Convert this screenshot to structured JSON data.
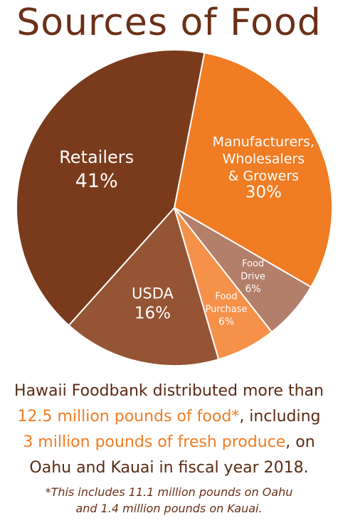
{
  "title": "Sources of Food",
  "chart_data": {
    "type": "pie",
    "title": "Sources of Food",
    "slices": [
      {
        "label_lines": [
          "Manufacturers,",
          "Wholesalers",
          "& Growers"
        ],
        "value": 30,
        "value_label": "30%",
        "color": "#f07c23"
      },
      {
        "label_lines": [
          "Food",
          "Drive"
        ],
        "value": 6,
        "value_label": "6%",
        "color": "#b37e6a"
      },
      {
        "label_lines": [
          "Food",
          "Purchase"
        ],
        "value": 6,
        "value_label": "6%",
        "color": "#f6914a"
      },
      {
        "label_lines": [
          "USDA"
        ],
        "value": 16,
        "value_label": "16%",
        "color": "#955433"
      },
      {
        "label_lines": [
          "Retailers"
        ],
        "value": 41,
        "value_label": "41%",
        "color": "#7a3a1c"
      }
    ]
  },
  "summary": {
    "line1": "Hawaii Foodbank distributed more than",
    "highlight1": "12.5 million pounds of food*",
    "line2_rest": ", including",
    "highlight2": "3 million pounds of fresh produce",
    "line3_rest": ", on",
    "line4": "Oahu and Kauai in fiscal year 2018."
  },
  "footnote": {
    "line1": "*This includes 11.1 million pounds on Oahu",
    "line2": "and 1.4 million pounds on Kauai."
  }
}
